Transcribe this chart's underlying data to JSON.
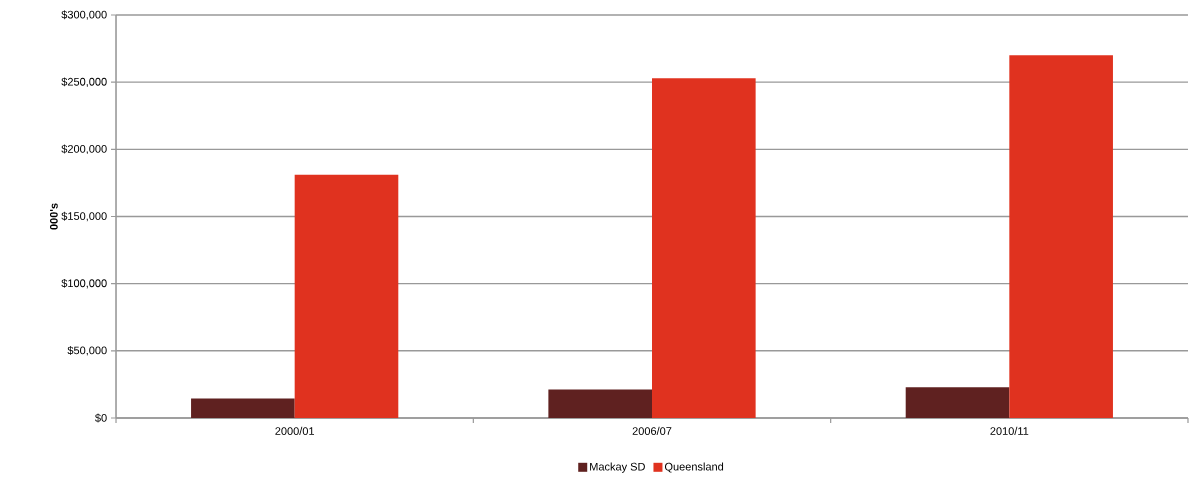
{
  "chart_data": {
    "type": "bar",
    "ylabel": "000's",
    "categories": [
      "2000/01",
      "2006/07",
      "2010/11"
    ],
    "series": [
      {
        "name": "Mackay SD",
        "color": "#5f2120",
        "values": [
          14500,
          21200,
          22900
        ]
      },
      {
        "name": "Queensland",
        "color": "#e0321f",
        "values": [
          181000,
          253000,
          270000
        ]
      }
    ],
    "ylim": [
      0,
      300000
    ],
    "yticks": [
      {
        "value": 0,
        "label": "$0"
      },
      {
        "value": 50000,
        "label": "$50,000"
      },
      {
        "value": 100000,
        "label": "$100,000"
      },
      {
        "value": 150000,
        "label": "$150,000"
      },
      {
        "value": 200000,
        "label": "$200,000"
      },
      {
        "value": 250000,
        "label": "$250,000"
      },
      {
        "value": 300000,
        "label": "$300,000"
      }
    ],
    "grid": "y",
    "legend": "bottom"
  }
}
